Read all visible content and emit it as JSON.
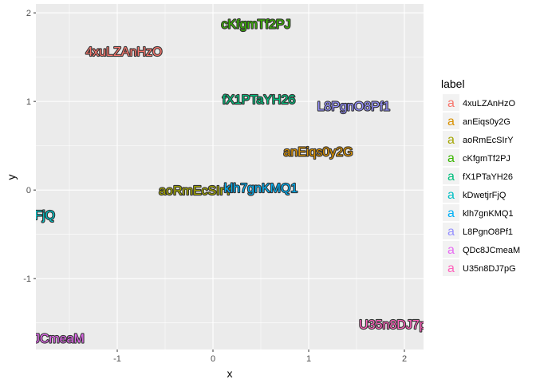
{
  "chart_data": {
    "type": "scatter",
    "xlabel": "x",
    "ylabel": "y",
    "xlim": [
      -1.85,
      2.2
    ],
    "ylim": [
      -1.8,
      2.1
    ],
    "x_ticks": [
      -1,
      0,
      1,
      2
    ],
    "y_ticks": [
      -1,
      0,
      1,
      2
    ],
    "x_tick_labels": [
      "-1",
      "0",
      "1",
      "2"
    ],
    "y_tick_labels": [
      "-1",
      "0",
      "1",
      "2"
    ],
    "grid": true,
    "legend": {
      "title": "label",
      "position": "right",
      "key_glyph": "a"
    },
    "points": [
      {
        "label": "4xuLZAnHzO",
        "x": -0.93,
        "y": 1.57,
        "color": "#F8766D"
      },
      {
        "label": "anEiqs0y2G",
        "x": 1.1,
        "y": 0.44,
        "color": "#D89000"
      },
      {
        "label": "aoRmEcSIrY",
        "x": -0.18,
        "y": 0.0,
        "color": "#A3A500"
      },
      {
        "label": "cKfgmTf2PJ",
        "x": 0.45,
        "y": 1.88,
        "color": "#39B600"
      },
      {
        "label": "fX1PTaYH26",
        "x": 0.48,
        "y": 1.03,
        "color": "#00BF7D"
      },
      {
        "label": "kDwetjrFjQ",
        "x": -1.98,
        "y": -0.28,
        "color": "#00BFC4"
      },
      {
        "label": "klh7gnKMQ1",
        "x": 0.5,
        "y": 0.03,
        "color": "#00B0F6"
      },
      {
        "label": "L8PgnO8Pf1",
        "x": 1.47,
        "y": 0.95,
        "color": "#9590FF"
      },
      {
        "label": "QDc8JCmeaM",
        "x": -1.78,
        "y": -1.67,
        "color": "#E76BF3"
      },
      {
        "label": "U35n8DJ7pG",
        "x": 1.93,
        "y": -1.51,
        "color": "#FF62BC"
      }
    ]
  }
}
